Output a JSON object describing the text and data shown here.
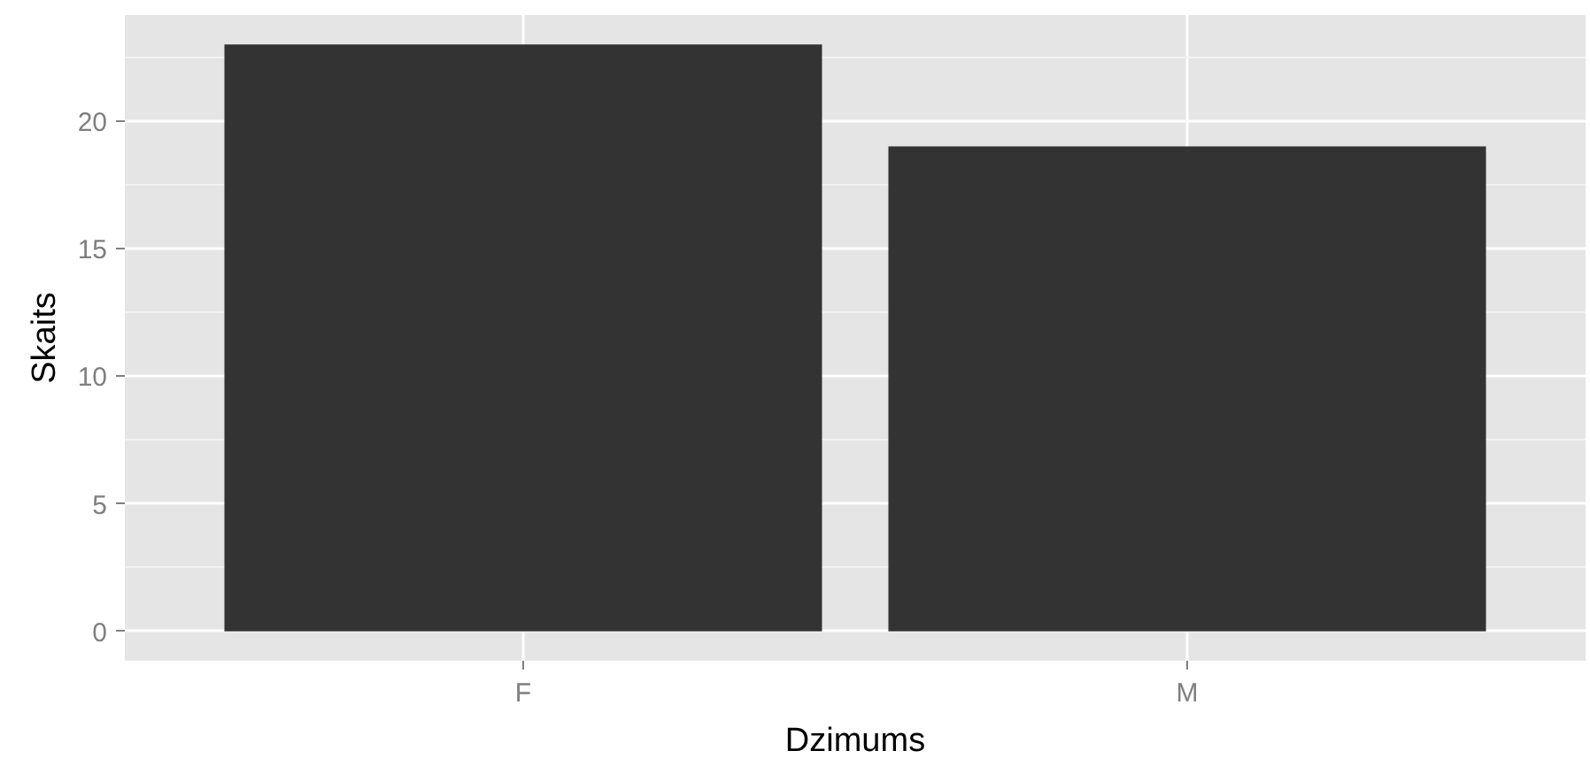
{
  "chart_data": {
    "type": "bar",
    "xlabel": "Dzimums",
    "ylabel": "Skaits",
    "categories": [
      "F",
      "M"
    ],
    "values": [
      23,
      19
    ],
    "color": "#333333",
    "ylim": [
      -1.15,
      24.15
    ],
    "yticks": [
      0,
      5,
      10,
      15,
      20
    ],
    "grid": true
  }
}
